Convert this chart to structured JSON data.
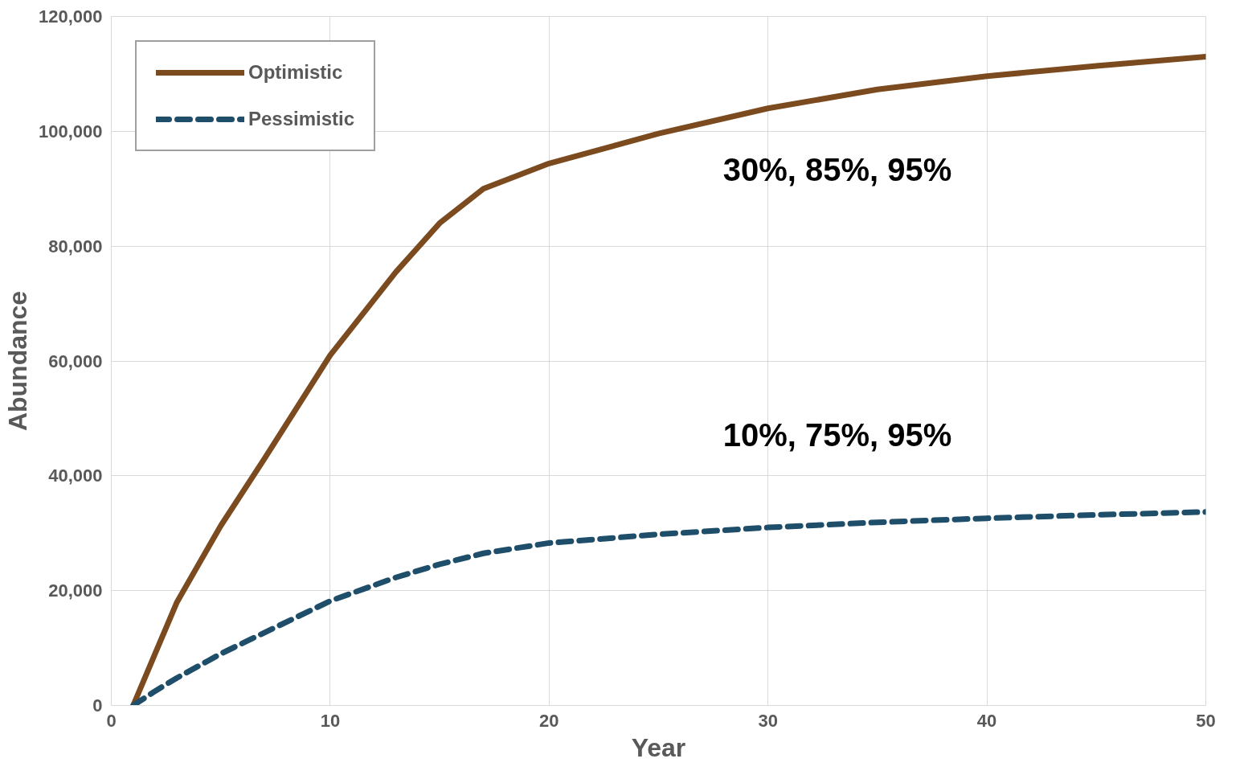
{
  "chart_data": {
    "type": "line",
    "xlabel": "Year",
    "ylabel": "Abundance",
    "x": [
      1,
      2,
      3,
      5,
      7,
      10,
      13,
      15,
      17,
      20,
      25,
      30,
      35,
      40,
      45,
      50
    ],
    "series": [
      {
        "name": "Optimistic",
        "color": "#7b4a1e",
        "line_style": "solid",
        "values": [
          0,
          9000,
          18000,
          31300,
          43000,
          61000,
          75500,
          84000,
          90000,
          94400,
          99600,
          104000,
          107300,
          109600,
          111400,
          113000
        ]
      },
      {
        "name": "Pessimistic",
        "color": "#1f4e6b",
        "line_style": "dashed",
        "values": [
          0,
          2500,
          4800,
          9000,
          12700,
          18200,
          22300,
          24600,
          26500,
          28300,
          29800,
          31000,
          31900,
          32600,
          33200,
          33700
        ]
      }
    ],
    "xlim": [
      0,
      50
    ],
    "xticks": [
      0,
      10,
      20,
      30,
      40,
      50
    ],
    "ylim": [
      0,
      120000
    ],
    "yticks": [
      {
        "value": 0,
        "label": "0"
      },
      {
        "value": 20000,
        "label": "20,000"
      },
      {
        "value": 40000,
        "label": "40,000"
      },
      {
        "value": 60000,
        "label": "60,000"
      },
      {
        "value": 80000,
        "label": "80,000"
      },
      {
        "value": 100000,
        "label": "100,000"
      },
      {
        "value": 120000,
        "label": "120,000"
      }
    ],
    "annotations": [
      "30%, 85%, 95%",
      "10%, 75%, 95%"
    ],
    "grid": true,
    "legend": "top left"
  }
}
